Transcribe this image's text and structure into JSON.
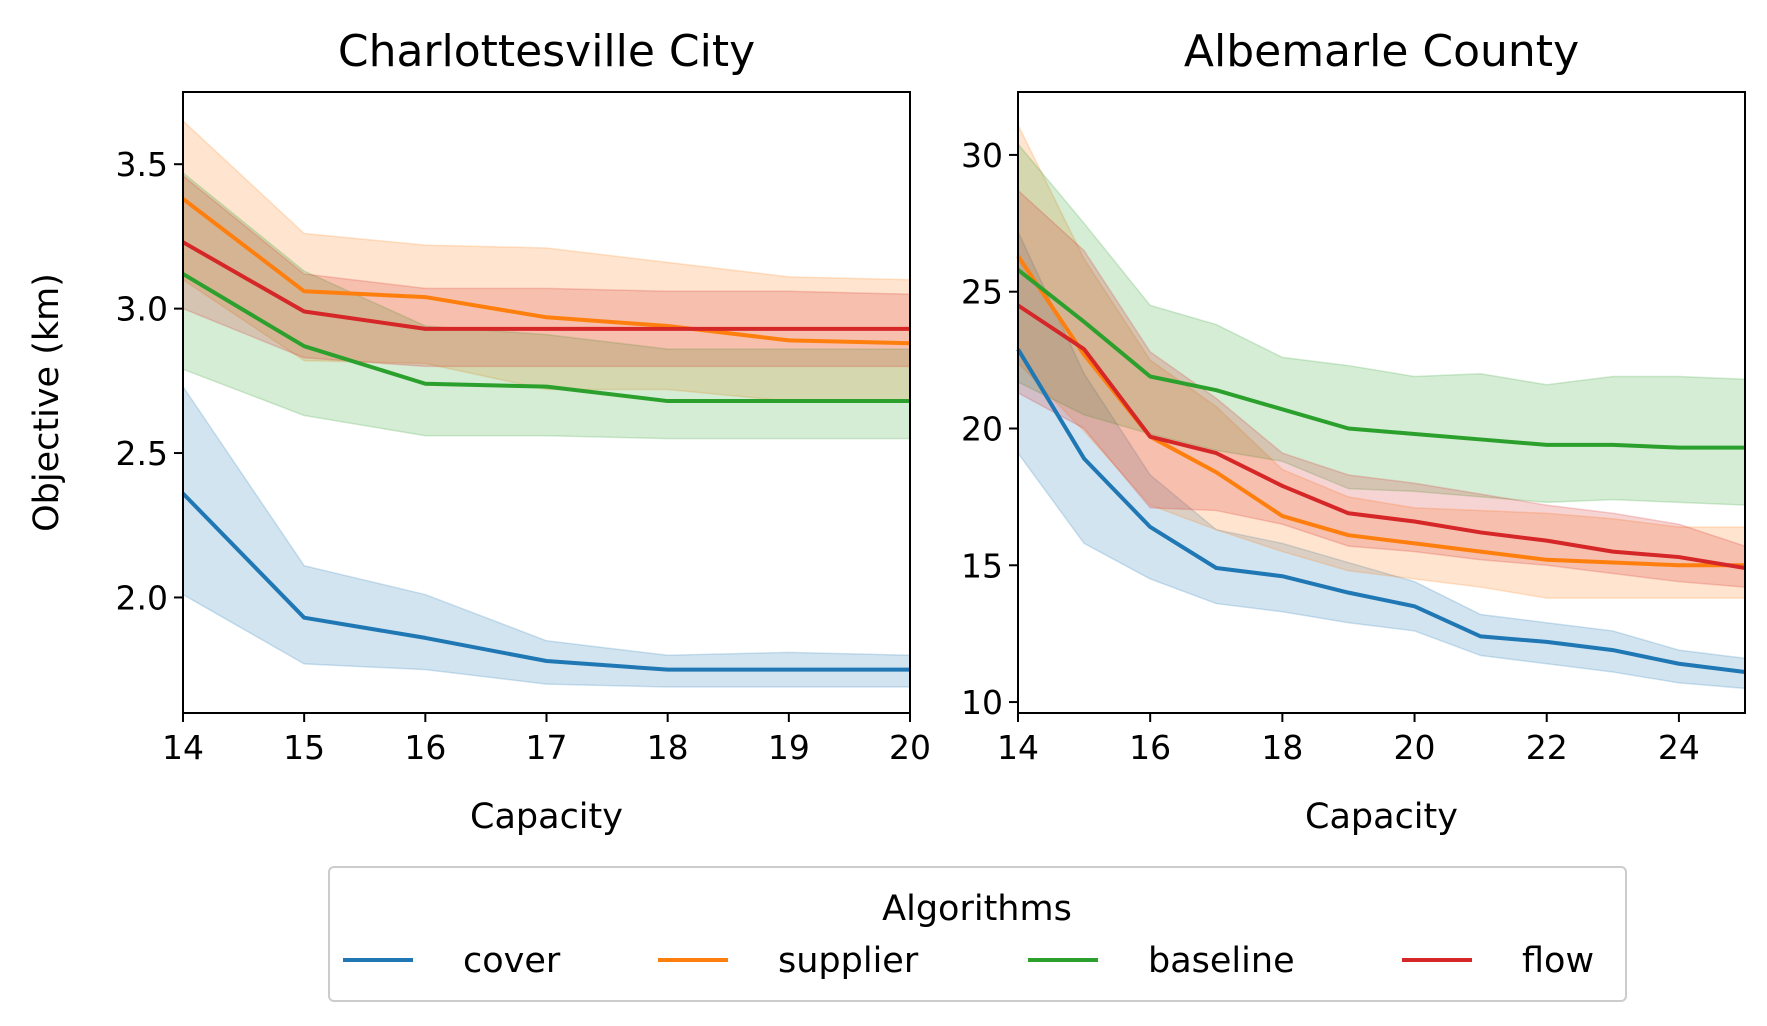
{
  "chart_data": [
    {
      "type": "line",
      "title": "Charlottesville City",
      "xlabel": "Capacity",
      "ylabel": "Objective (km)",
      "xlim": [
        14,
        20
      ],
      "ylim": [
        1.6,
        3.75
      ],
      "xticks": [
        14,
        15,
        16,
        17,
        18,
        19,
        20
      ],
      "yticks": [
        2.0,
        2.5,
        3.0,
        3.5
      ],
      "ytick_labels": [
        "2.0",
        "2.5",
        "3.0",
        "3.5"
      ],
      "x": [
        14,
        15,
        16,
        17,
        18,
        19,
        20
      ],
      "series": [
        {
          "name": "cover",
          "values": [
            2.36,
            1.93,
            1.86,
            1.78,
            1.75,
            1.75,
            1.75
          ],
          "lower": [
            2.01,
            1.77,
            1.75,
            1.7,
            1.69,
            1.69,
            1.69
          ],
          "upper": [
            2.73,
            2.11,
            2.01,
            1.85,
            1.8,
            1.81,
            1.8
          ]
        },
        {
          "name": "supplier",
          "values": [
            3.38,
            3.06,
            3.04,
            2.97,
            2.94,
            2.89,
            2.88
          ],
          "lower": [
            3.1,
            2.82,
            2.81,
            2.72,
            2.72,
            2.68,
            2.68
          ],
          "upper": [
            3.65,
            3.26,
            3.22,
            3.21,
            3.16,
            3.11,
            3.1
          ]
        },
        {
          "name": "baseline",
          "values": [
            3.12,
            2.87,
            2.74,
            2.73,
            2.68,
            2.68,
            2.68
          ],
          "lower": [
            2.79,
            2.63,
            2.56,
            2.56,
            2.55,
            2.55,
            2.55
          ],
          "upper": [
            3.47,
            3.13,
            2.94,
            2.91,
            2.86,
            2.86,
            2.86
          ]
        },
        {
          "name": "flow",
          "values": [
            3.23,
            2.99,
            2.93,
            2.93,
            2.93,
            2.93,
            2.93
          ],
          "lower": [
            3.0,
            2.83,
            2.8,
            2.8,
            2.8,
            2.8,
            2.8
          ],
          "upper": [
            3.46,
            3.12,
            3.07,
            3.07,
            3.06,
            3.06,
            3.05
          ]
        }
      ]
    },
    {
      "type": "line",
      "title": "Albemarle County",
      "xlabel": "Capacity",
      "ylabel": "",
      "xlim": [
        14,
        25
      ],
      "ylim": [
        9.6,
        32.3
      ],
      "xticks": [
        14,
        16,
        18,
        20,
        22,
        24
      ],
      "yticks": [
        10,
        15,
        20,
        25,
        30
      ],
      "ytick_labels": [
        "10",
        "15",
        "20",
        "25",
        "30"
      ],
      "x": [
        14,
        15,
        16,
        17,
        18,
        19,
        20,
        21,
        22,
        23,
        24,
        25
      ],
      "series": [
        {
          "name": "cover",
          "values": [
            22.9,
            18.9,
            16.4,
            14.9,
            14.6,
            14.0,
            13.5,
            12.4,
            12.2,
            11.9,
            11.4,
            11.1
          ],
          "lower": [
            19.1,
            15.8,
            14.5,
            13.6,
            13.3,
            12.9,
            12.6,
            11.7,
            11.4,
            11.1,
            10.7,
            10.5
          ],
          "upper": [
            27.2,
            22.0,
            18.3,
            16.3,
            15.8,
            15.1,
            14.4,
            13.2,
            12.9,
            12.6,
            11.9,
            11.6
          ]
        },
        {
          "name": "supplier",
          "values": [
            26.3,
            22.7,
            19.7,
            18.4,
            16.8,
            16.1,
            15.8,
            15.5,
            15.2,
            15.1,
            15.0,
            15.0
          ],
          "lower": [
            22.4,
            19.9,
            17.2,
            16.3,
            15.5,
            14.8,
            14.5,
            14.2,
            13.8,
            13.8,
            13.8,
            13.8
          ],
          "upper": [
            31.1,
            26.2,
            22.5,
            20.8,
            18.5,
            17.5,
            17.1,
            17.0,
            16.9,
            16.7,
            16.4,
            16.4
          ]
        },
        {
          "name": "baseline",
          "values": [
            25.8,
            23.9,
            21.9,
            21.4,
            20.7,
            20.0,
            19.8,
            19.6,
            19.4,
            19.4,
            19.3,
            19.3
          ],
          "lower": [
            21.7,
            20.5,
            19.8,
            19.2,
            18.8,
            17.8,
            17.7,
            17.5,
            17.3,
            17.4,
            17.3,
            17.2
          ],
          "upper": [
            30.4,
            27.5,
            24.5,
            23.8,
            22.6,
            22.3,
            21.9,
            22.0,
            21.6,
            21.9,
            21.9,
            21.8
          ]
        },
        {
          "name": "flow",
          "values": [
            24.5,
            22.9,
            19.7,
            19.1,
            17.9,
            16.9,
            16.6,
            16.2,
            15.9,
            15.5,
            15.3,
            14.9
          ],
          "lower": [
            21.3,
            20.0,
            17.1,
            17.0,
            16.5,
            15.7,
            15.5,
            15.2,
            15.0,
            14.7,
            14.4,
            14.2
          ],
          "upper": [
            28.7,
            26.5,
            22.8,
            21.1,
            19.1,
            18.3,
            18.0,
            17.6,
            17.2,
            16.9,
            16.5,
            15.7
          ]
        }
      ]
    }
  ],
  "legend": {
    "title": "Algorithms",
    "placement": "bottom-center",
    "items": [
      {
        "label": "cover",
        "color": "#1f77b4"
      },
      {
        "label": "supplier",
        "color": "#ff7f0e"
      },
      {
        "label": "baseline",
        "color": "#2ca02c"
      },
      {
        "label": "flow",
        "color": "#d62728"
      }
    ]
  },
  "colors": {
    "cover": "#1f77b4",
    "supplier": "#ff7f0e",
    "baseline": "#2ca02c",
    "flow": "#d62728"
  }
}
